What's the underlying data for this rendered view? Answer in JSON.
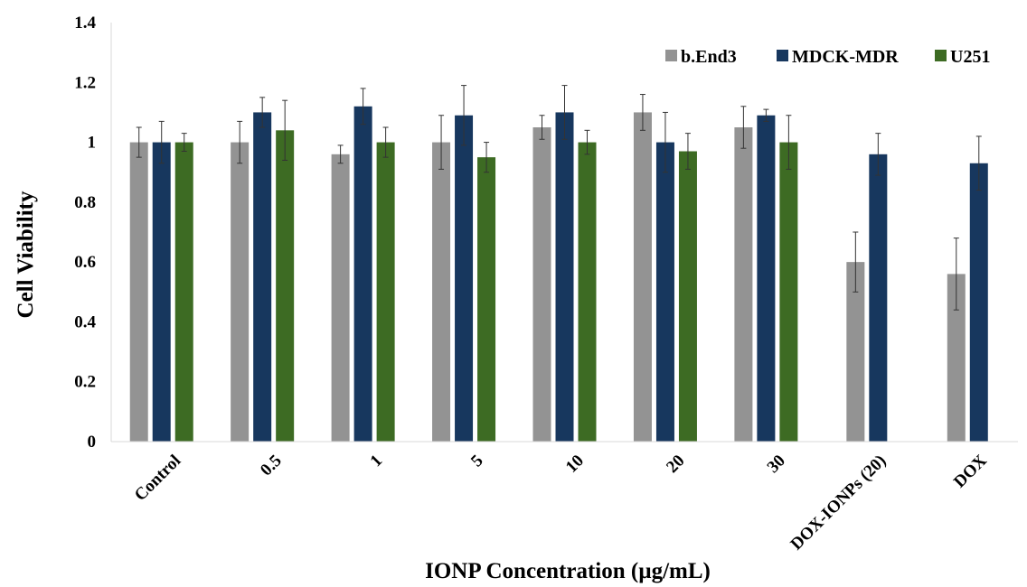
{
  "chart_data": {
    "type": "bar",
    "title": "",
    "xlabel": "IONP Concentration (µg/mL)",
    "ylabel": "Cell Viability",
    "ylim": [
      0,
      1.4
    ],
    "yticks": [
      "0",
      "0.2",
      "0.4",
      "0.6",
      "0.8",
      "1",
      "1.2",
      "1.4"
    ],
    "grid": false,
    "legend_position": "top-right",
    "categories": [
      "Control",
      "0.5",
      "1",
      "5",
      "10",
      "20",
      "30",
      "DOX-IONPs (20)",
      "DOX"
    ],
    "series": [
      {
        "name": "b.End3",
        "color": "#939393",
        "values": [
          1.0,
          1.0,
          0.96,
          1.0,
          1.05,
          1.1,
          1.05,
          0.6,
          0.56
        ],
        "errors": [
          0.05,
          0.07,
          0.03,
          0.09,
          0.04,
          0.06,
          0.07,
          0.1,
          0.12
        ]
      },
      {
        "name": "MDCK-MDR",
        "color": "#17375e",
        "values": [
          1.0,
          1.1,
          1.12,
          1.09,
          1.1,
          1.0,
          1.09,
          0.96,
          0.93
        ],
        "errors": [
          0.07,
          0.05,
          0.06,
          0.1,
          0.09,
          0.1,
          0.02,
          0.07,
          0.09
        ]
      },
      {
        "name": "U251",
        "color": "#3d6b23",
        "values": [
          1.0,
          1.04,
          1.0,
          0.95,
          1.0,
          0.97,
          1.0,
          null,
          null
        ],
        "errors": [
          0.03,
          0.1,
          0.05,
          0.05,
          0.04,
          0.06,
          0.09,
          null,
          null
        ]
      }
    ]
  }
}
